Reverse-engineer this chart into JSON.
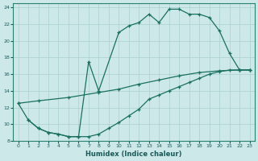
{
  "xlabel": "Humidex (Indice chaleur)",
  "bg_color": "#cce8e8",
  "grid_color": "#aacfcf",
  "line_color": "#1a7060",
  "xlim": [
    -0.5,
    23.5
  ],
  "ylim": [
    8,
    24.5
  ],
  "xticks": [
    0,
    1,
    2,
    3,
    4,
    5,
    6,
    7,
    8,
    9,
    10,
    11,
    12,
    13,
    14,
    15,
    16,
    17,
    18,
    19,
    20,
    21,
    22,
    23
  ],
  "yticks": [
    8,
    10,
    12,
    14,
    16,
    18,
    20,
    22,
    24
  ],
  "line1_x": [
    0,
    1,
    2,
    3,
    4,
    5,
    6,
    7,
    8,
    10,
    11,
    12,
    13,
    14,
    15,
    16,
    17,
    18,
    19,
    20,
    21,
    22,
    23
  ],
  "line1_y": [
    12.5,
    10.5,
    9.5,
    9.0,
    8.8,
    8.5,
    8.5,
    17.5,
    14.0,
    21.0,
    21.8,
    22.2,
    23.2,
    22.2,
    23.8,
    23.8,
    23.2,
    23.2,
    22.8,
    21.2,
    18.5,
    16.5,
    16.5
  ],
  "line2_x": [
    1,
    2,
    3,
    4,
    5,
    6,
    7,
    8,
    9,
    10,
    11,
    12,
    13,
    14,
    15,
    16,
    17,
    18,
    19,
    20,
    21,
    22,
    23
  ],
  "line2_y": [
    10.5,
    9.5,
    9.0,
    8.8,
    8.5,
    8.5,
    8.5,
    8.8,
    9.5,
    10.2,
    11.0,
    11.8,
    13.0,
    13.5,
    14.0,
    14.5,
    15.0,
    15.5,
    16.0,
    16.3,
    16.5,
    16.5,
    16.5
  ],
  "line3_x": [
    0,
    2,
    5,
    8,
    10,
    12,
    14,
    16,
    18,
    20,
    22,
    23
  ],
  "line3_y": [
    12.5,
    12.8,
    13.2,
    13.8,
    14.2,
    14.8,
    15.3,
    15.8,
    16.2,
    16.4,
    16.5,
    16.5
  ]
}
